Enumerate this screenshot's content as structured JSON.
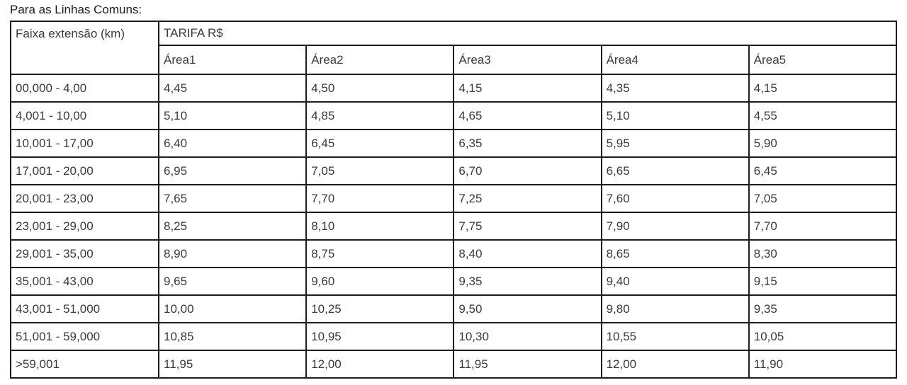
{
  "page": {
    "title": "Para as Linhas Comuns:"
  },
  "colors": {
    "background": "#ffffff",
    "border": "#1d1d1d",
    "text": "#3a3a3a",
    "title_text": "#1c1c1c"
  },
  "table": {
    "header": {
      "faixa": "Faixa extensão (km)",
      "tarifa": "TARIFA R$",
      "areas": [
        "Área1",
        "Área2",
        "Área3",
        "Área4",
        "Área5"
      ]
    },
    "rows": [
      {
        "range": "00,000 - 4,00",
        "values": [
          "4,45",
          "4,50",
          "4,15",
          "4,35",
          "4,15"
        ]
      },
      {
        "range": "4,001 - 10,00",
        "values": [
          "5,10",
          "4,85",
          "4,65",
          "5,10",
          "4,55"
        ]
      },
      {
        "range": "10,001 - 17,00",
        "values": [
          "6,40",
          "6,45",
          "6,35",
          "5,95",
          "5,90"
        ]
      },
      {
        "range": "17,001 - 20,00",
        "values": [
          "6,95",
          "7,05",
          "6,70",
          "6,65",
          "6,45"
        ]
      },
      {
        "range": "20,001 - 23,00",
        "values": [
          "7,65",
          "7,70",
          "7,25",
          "7,60",
          "7,05"
        ]
      },
      {
        "range": "23,001 - 29,00",
        "values": [
          "8,25",
          "8,10",
          "7,75",
          "7,90",
          "7,70"
        ]
      },
      {
        "range": "29,001 - 35,00",
        "values": [
          "8,90",
          "8,75",
          "8,40",
          "8,65",
          "8,30"
        ]
      },
      {
        "range": "35,001 - 43,00",
        "values": [
          "9,65",
          "9,60",
          "9,35",
          "9,40",
          "9,15"
        ]
      },
      {
        "range": "43,001 - 51,000",
        "values": [
          "10,00",
          "10,25",
          "9,50",
          "9,80",
          "9,35"
        ]
      },
      {
        "range": "51,001 - 59,000",
        "values": [
          "10,85",
          "10,95",
          "10,30",
          "10,55",
          "10,05"
        ]
      },
      {
        "range": ">59,001",
        "values": [
          "11,95",
          "12,00",
          "11,95",
          "12,00",
          "11,90"
        ]
      }
    ]
  }
}
